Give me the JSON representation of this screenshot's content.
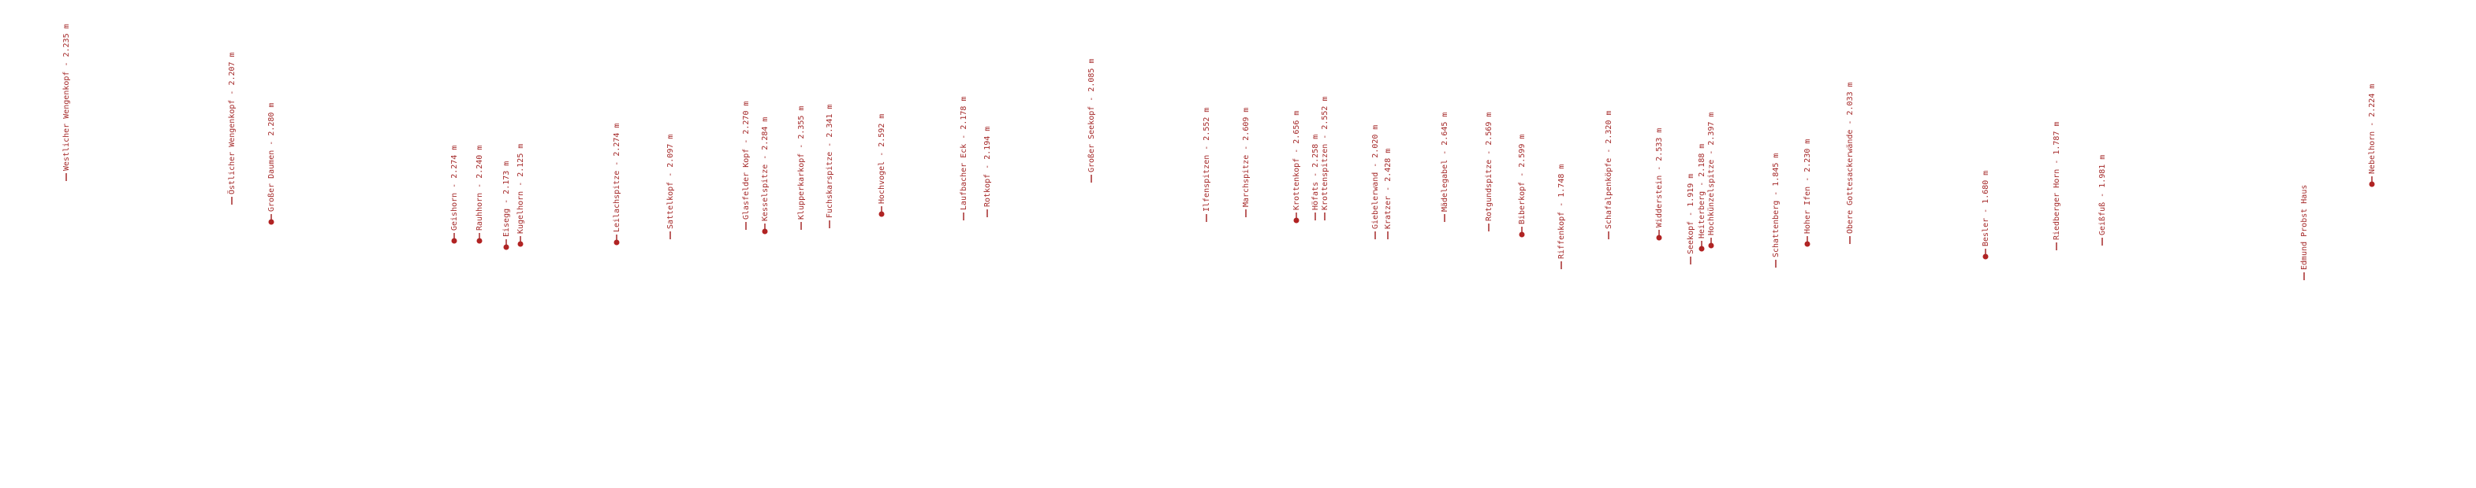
{
  "peaks": [
    "Westlicher Wengenkopf - 2.235 m",
    "Östlicher Wengenkopf - 2.207 m",
    "Großer Daumen - 2.280 m",
    "Geishorn - 2.274 m",
    "Rauhhorn - 2.240 m",
    "Eisegg - 2.173 m",
    "Kugelhorn - 2.125 m",
    "Leilachspitze - 2.274 m",
    "Sattelkopf - 2.097 m",
    "Glasfelder Kopf - 2.270 m",
    "Kesselspitze - 2.284 m",
    "Klupperkarkopf - 2.355 m",
    "Fuchskarspitze - 2.341 m",
    "Hochvogel - 2.592 m",
    "Laufbacher Eck - 2.178 m",
    "Rotkopf - 2.194 m",
    "Großer Seekopf - 2.085 m",
    "Ilfenspitzen - 2.552 m",
    "Marchspitze - 2.609 m",
    "Krottenkopf - 2.656 m",
    "Höfats - 2.258 m",
    "Krottenspitzen - 2.552 m",
    "Giebelerwand - 2.020 m",
    "Kratzer - 2.428 m",
    "Mädelegabel - 2.645 m",
    "Rotgundspitze - 2.569 m",
    "Biberkopf - 2.599 m",
    "Riffenkopf - 1.748 m",
    "Schafalpenköpfe - 2.320 m",
    "Widderstein - 2.533 m",
    "Seekopf - 1.919 m",
    "Heiterberg - 2.188 m",
    "Hochkünzelspitze - 2.397 m",
    "Schattenberg - 1.845 m",
    "Hoher Ifen - 2.230 m",
    "Obere Gottesackerwände - 2.033 m",
    "Besler - 1.680 m",
    "Riedberger Horn - 1.787 m",
    "Geißfuß - 1.981 m",
    "Edmund Probst Haus",
    "Nebelhorn - 2.224 m"
  ]
}
